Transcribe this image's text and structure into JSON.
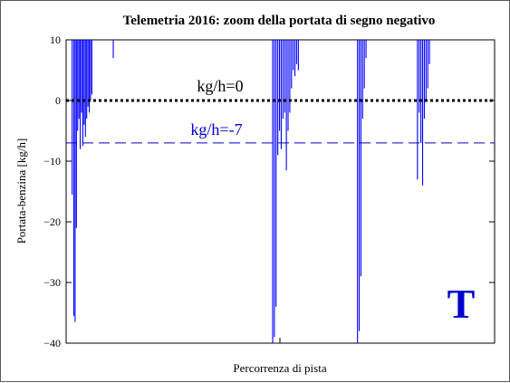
{
  "chart_data": {
    "type": "line",
    "title": "Telemetria 2016: zoom della portata di segno negativo",
    "xlabel": "Percorrenza di pista",
    "ylabel": "Portata-benzina  [kg/h]",
    "ylim": [
      -40,
      10
    ],
    "xlim": [
      0,
      100
    ],
    "yticks": [
      10,
      0,
      -10,
      -20,
      -30,
      -40
    ],
    "ytick_labels": [
      "10",
      "0",
      "−10",
      "−20",
      "−30",
      "−40"
    ],
    "grid": false,
    "legend": "none",
    "series": [
      {
        "color": "#0000ff",
        "spikes": [
          {
            "x": 1.0,
            "min": 10
          },
          {
            "x": 1.4,
            "min": -15.5
          },
          {
            "x": 1.8,
            "min": -35.5
          },
          {
            "x": 2.1,
            "min": -36.5
          },
          {
            "x": 2.4,
            "min": -21
          },
          {
            "x": 2.7,
            "min": -5
          },
          {
            "x": 3.0,
            "min": -3
          },
          {
            "x": 3.3,
            "min": -8
          },
          {
            "x": 3.6,
            "min": -2
          },
          {
            "x": 3.9,
            "min": -7.5
          },
          {
            "x": 4.2,
            "min": -4
          },
          {
            "x": 4.5,
            "min": -6
          },
          {
            "x": 4.8,
            "min": -3
          },
          {
            "x": 5.1,
            "min": -1
          },
          {
            "x": 5.4,
            "min": -2
          },
          {
            "x": 5.7,
            "min": 0
          },
          {
            "x": 6.0,
            "min": 1
          },
          {
            "x": 11.0,
            "min": 7
          },
          {
            "x": 48.2,
            "min": -40
          },
          {
            "x": 48.6,
            "min": -39
          },
          {
            "x": 49.0,
            "min": -34
          },
          {
            "x": 49.4,
            "min": -9
          },
          {
            "x": 49.8,
            "min": -5
          },
          {
            "x": 50.2,
            "min": -8
          },
          {
            "x": 50.6,
            "min": -3
          },
          {
            "x": 51.0,
            "min": -2
          },
          {
            "x": 51.4,
            "min": -11.5
          },
          {
            "x": 51.8,
            "min": -5
          },
          {
            "x": 52.2,
            "min": -2
          },
          {
            "x": 52.6,
            "min": 2
          },
          {
            "x": 53.0,
            "min": 5
          },
          {
            "x": 53.4,
            "min": 4
          },
          {
            "x": 53.8,
            "min": 6
          },
          {
            "x": 54.2,
            "min": 5
          },
          {
            "x": 68.0,
            "min": -40
          },
          {
            "x": 68.4,
            "min": -38
          },
          {
            "x": 68.8,
            "min": -29
          },
          {
            "x": 69.2,
            "min": -3
          },
          {
            "x": 69.6,
            "min": 2
          },
          {
            "x": 70.0,
            "min": 7
          },
          {
            "x": 82.0,
            "min": -13
          },
          {
            "x": 82.4,
            "min": -2
          },
          {
            "x": 82.8,
            "min": -7
          },
          {
            "x": 83.2,
            "min": -14
          },
          {
            "x": 83.6,
            "min": -3
          },
          {
            "x": 84.0,
            "min": 0
          },
          {
            "x": 84.4,
            "min": 2
          },
          {
            "x": 84.8,
            "min": 6
          }
        ]
      }
    ],
    "reference_lines": [
      {
        "y": 0,
        "label": "kg/h=0",
        "color": "#000000",
        "style": "dotted"
      },
      {
        "y": -7,
        "label": "kg/h=-7",
        "color": "#0000cc",
        "style": "dashed"
      }
    ],
    "mark": {
      "text": "T",
      "color": "#0000cc"
    }
  }
}
